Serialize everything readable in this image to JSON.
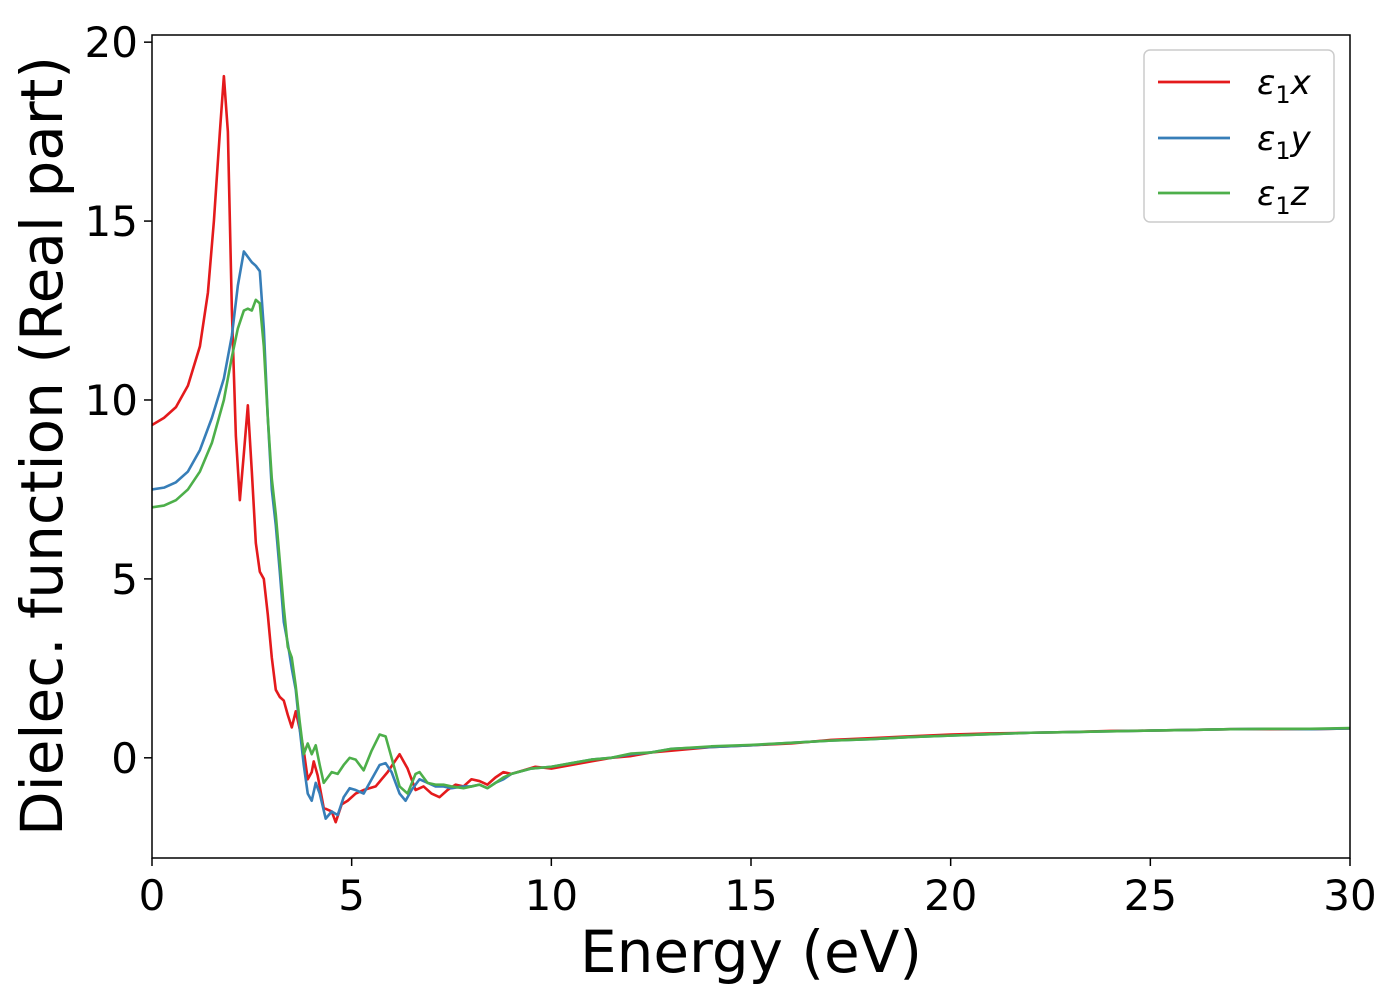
{
  "chart_data": {
    "type": "line",
    "title": "",
    "xlabel": "Energy (eV)",
    "ylabel": "Dielec. function (Real part)",
    "xlim": [
      0,
      30
    ],
    "ylim": [
      -2.8,
      20.2
    ],
    "xticks": [
      0,
      5,
      10,
      15,
      20,
      25,
      30
    ],
    "yticks": [
      0,
      5,
      10,
      15,
      20
    ],
    "grid": false,
    "legend_position": "top-right",
    "series": [
      {
        "name": "ε₁x",
        "color": "#e41a1c",
        "points": [
          [
            0,
            9.3
          ],
          [
            0.3,
            9.5
          ],
          [
            0.6,
            9.8
          ],
          [
            0.9,
            10.4
          ],
          [
            1.2,
            11.5
          ],
          [
            1.4,
            13.0
          ],
          [
            1.55,
            15.0
          ],
          [
            1.7,
            17.5
          ],
          [
            1.8,
            19.05
          ],
          [
            1.9,
            17.5
          ],
          [
            2.0,
            12.5
          ],
          [
            2.1,
            9.0
          ],
          [
            2.2,
            7.2
          ],
          [
            2.3,
            8.5
          ],
          [
            2.4,
            9.85
          ],
          [
            2.5,
            8.0
          ],
          [
            2.6,
            6.0
          ],
          [
            2.7,
            5.2
          ],
          [
            2.8,
            5.0
          ],
          [
            2.9,
            4.0
          ],
          [
            3.0,
            2.8
          ],
          [
            3.1,
            1.9
          ],
          [
            3.2,
            1.7
          ],
          [
            3.3,
            1.6
          ],
          [
            3.4,
            1.2
          ],
          [
            3.5,
            0.85
          ],
          [
            3.6,
            1.3
          ],
          [
            3.7,
            0.8
          ],
          [
            3.8,
            0.2
          ],
          [
            3.9,
            -0.6
          ],
          [
            4.0,
            -0.4
          ],
          [
            4.05,
            -0.1
          ],
          [
            4.15,
            -0.5
          ],
          [
            4.3,
            -1.4
          ],
          [
            4.5,
            -1.5
          ],
          [
            4.6,
            -1.8
          ],
          [
            4.75,
            -1.3
          ],
          [
            4.9,
            -1.2
          ],
          [
            5.1,
            -1.0
          ],
          [
            5.3,
            -0.9
          ],
          [
            5.6,
            -0.8
          ],
          [
            5.9,
            -0.4
          ],
          [
            6.2,
            0.1
          ],
          [
            6.4,
            -0.3
          ],
          [
            6.6,
            -0.9
          ],
          [
            6.8,
            -0.8
          ],
          [
            7.0,
            -1.0
          ],
          [
            7.2,
            -1.1
          ],
          [
            7.4,
            -0.9
          ],
          [
            7.6,
            -0.75
          ],
          [
            7.8,
            -0.8
          ],
          [
            8.0,
            -0.6
          ],
          [
            8.2,
            -0.65
          ],
          [
            8.4,
            -0.75
          ],
          [
            8.6,
            -0.55
          ],
          [
            8.8,
            -0.4
          ],
          [
            9.0,
            -0.45
          ],
          [
            9.3,
            -0.35
          ],
          [
            9.6,
            -0.25
          ],
          [
            10.0,
            -0.3
          ],
          [
            10.5,
            -0.2
          ],
          [
            11.0,
            -0.1
          ],
          [
            11.5,
            0.0
          ],
          [
            12.0,
            0.05
          ],
          [
            12.5,
            0.15
          ],
          [
            13,
            0.2
          ],
          [
            14,
            0.3
          ],
          [
            15,
            0.35
          ],
          [
            16,
            0.4
          ],
          [
            17,
            0.5
          ],
          [
            18,
            0.55
          ],
          [
            19,
            0.6
          ],
          [
            20,
            0.65
          ],
          [
            21,
            0.68
          ],
          [
            22,
            0.7
          ],
          [
            23,
            0.72
          ],
          [
            24,
            0.75
          ],
          [
            25,
            0.76
          ],
          [
            26,
            0.78
          ],
          [
            27,
            0.8
          ],
          [
            28,
            0.8
          ],
          [
            29,
            0.8
          ],
          [
            30,
            0.82
          ]
        ]
      },
      {
        "name": "ε₁y",
        "color": "#377eb8",
        "points": [
          [
            0,
            7.5
          ],
          [
            0.3,
            7.55
          ],
          [
            0.6,
            7.7
          ],
          [
            0.9,
            8.0
          ],
          [
            1.2,
            8.6
          ],
          [
            1.5,
            9.5
          ],
          [
            1.8,
            10.6
          ],
          [
            2.0,
            11.8
          ],
          [
            2.15,
            13.2
          ],
          [
            2.3,
            14.15
          ],
          [
            2.4,
            14.0
          ],
          [
            2.5,
            13.85
          ],
          [
            2.6,
            13.75
          ],
          [
            2.7,
            13.6
          ],
          [
            2.8,
            12.0
          ],
          [
            2.9,
            9.5
          ],
          [
            3.0,
            7.5
          ],
          [
            3.1,
            6.5
          ],
          [
            3.2,
            5.2
          ],
          [
            3.3,
            3.8
          ],
          [
            3.4,
            3.2
          ],
          [
            3.5,
            2.5
          ],
          [
            3.6,
            1.9
          ],
          [
            3.7,
            0.8
          ],
          [
            3.8,
            -0.2
          ],
          [
            3.9,
            -1.0
          ],
          [
            4.0,
            -1.2
          ],
          [
            4.1,
            -0.7
          ],
          [
            4.2,
            -1.0
          ],
          [
            4.35,
            -1.7
          ],
          [
            4.5,
            -1.5
          ],
          [
            4.65,
            -1.6
          ],
          [
            4.8,
            -1.1
          ],
          [
            4.95,
            -0.85
          ],
          [
            5.1,
            -0.9
          ],
          [
            5.3,
            -1.0
          ],
          [
            5.5,
            -0.6
          ],
          [
            5.7,
            -0.2
          ],
          [
            5.85,
            -0.15
          ],
          [
            6.0,
            -0.4
          ],
          [
            6.2,
            -1.0
          ],
          [
            6.35,
            -1.2
          ],
          [
            6.5,
            -0.9
          ],
          [
            6.7,
            -0.6
          ],
          [
            6.9,
            -0.7
          ],
          [
            7.1,
            -0.8
          ],
          [
            7.3,
            -0.8
          ],
          [
            7.5,
            -0.85
          ],
          [
            7.8,
            -0.8
          ],
          [
            8.0,
            -0.8
          ],
          [
            8.2,
            -0.75
          ],
          [
            8.4,
            -0.85
          ],
          [
            8.6,
            -0.7
          ],
          [
            8.8,
            -0.6
          ],
          [
            9.0,
            -0.45
          ],
          [
            9.5,
            -0.3
          ],
          [
            10.0,
            -0.25
          ],
          [
            10.5,
            -0.15
          ],
          [
            11.0,
            -0.05
          ],
          [
            11.5,
            0.0
          ],
          [
            12.0,
            0.1
          ],
          [
            12.5,
            0.15
          ],
          [
            13,
            0.25
          ],
          [
            14,
            0.3
          ],
          [
            15,
            0.35
          ],
          [
            16,
            0.42
          ],
          [
            17,
            0.48
          ],
          [
            18,
            0.52
          ],
          [
            19,
            0.58
          ],
          [
            20,
            0.62
          ],
          [
            21,
            0.66
          ],
          [
            22,
            0.7
          ],
          [
            23,
            0.72
          ],
          [
            24,
            0.74
          ],
          [
            25,
            0.76
          ],
          [
            26,
            0.78
          ],
          [
            27,
            0.8
          ],
          [
            28,
            0.81
          ],
          [
            29,
            0.8
          ],
          [
            30,
            0.82
          ]
        ]
      },
      {
        "name": "ε₁z",
        "color": "#4daf4a",
        "points": [
          [
            0,
            7.0
          ],
          [
            0.3,
            7.05
          ],
          [
            0.6,
            7.2
          ],
          [
            0.9,
            7.5
          ],
          [
            1.2,
            8.0
          ],
          [
            1.5,
            8.8
          ],
          [
            1.8,
            10.0
          ],
          [
            2.0,
            11.2
          ],
          [
            2.15,
            12.0
          ],
          [
            2.3,
            12.5
          ],
          [
            2.4,
            12.55
          ],
          [
            2.5,
            12.5
          ],
          [
            2.6,
            12.8
          ],
          [
            2.7,
            12.7
          ],
          [
            2.8,
            11.5
          ],
          [
            2.9,
            9.5
          ],
          [
            3.0,
            7.8
          ],
          [
            3.1,
            6.8
          ],
          [
            3.2,
            5.5
          ],
          [
            3.3,
            4.2
          ],
          [
            3.4,
            3.1
          ],
          [
            3.5,
            2.8
          ],
          [
            3.6,
            2.0
          ],
          [
            3.7,
            1.0
          ],
          [
            3.8,
            0.1
          ],
          [
            3.9,
            0.4
          ],
          [
            4.0,
            0.1
          ],
          [
            4.1,
            0.35
          ],
          [
            4.2,
            -0.2
          ],
          [
            4.3,
            -0.7
          ],
          [
            4.5,
            -0.4
          ],
          [
            4.65,
            -0.45
          ],
          [
            4.8,
            -0.2
          ],
          [
            4.95,
            0.0
          ],
          [
            5.1,
            -0.05
          ],
          [
            5.3,
            -0.35
          ],
          [
            5.5,
            0.2
          ],
          [
            5.7,
            0.65
          ],
          [
            5.85,
            0.6
          ],
          [
            6.0,
            0.0
          ],
          [
            6.2,
            -0.8
          ],
          [
            6.4,
            -1.0
          ],
          [
            6.6,
            -0.45
          ],
          [
            6.7,
            -0.4
          ],
          [
            6.9,
            -0.7
          ],
          [
            7.1,
            -0.75
          ],
          [
            7.3,
            -0.75
          ],
          [
            7.5,
            -0.8
          ],
          [
            7.8,
            -0.85
          ],
          [
            8.0,
            -0.8
          ],
          [
            8.2,
            -0.75
          ],
          [
            8.4,
            -0.85
          ],
          [
            8.6,
            -0.7
          ],
          [
            8.8,
            -0.55
          ],
          [
            9.0,
            -0.45
          ],
          [
            9.5,
            -0.3
          ],
          [
            10.0,
            -0.25
          ],
          [
            10.5,
            -0.15
          ],
          [
            11.0,
            -0.05
          ],
          [
            11.5,
            0.0
          ],
          [
            12.0,
            0.12
          ],
          [
            12.5,
            0.15
          ],
          [
            13,
            0.25
          ],
          [
            14,
            0.32
          ],
          [
            15,
            0.36
          ],
          [
            16,
            0.42
          ],
          [
            17,
            0.48
          ],
          [
            18,
            0.52
          ],
          [
            19,
            0.58
          ],
          [
            20,
            0.62
          ],
          [
            21,
            0.66
          ],
          [
            22,
            0.7
          ],
          [
            23,
            0.72
          ],
          [
            24,
            0.74
          ],
          [
            25,
            0.76
          ],
          [
            26,
            0.78
          ],
          [
            27,
            0.8
          ],
          [
            28,
            0.81
          ],
          [
            29,
            0.81
          ],
          [
            30,
            0.83
          ]
        ]
      }
    ]
  },
  "legend": {
    "items": [
      {
        "base": "ε",
        "sub": "1",
        "suffix": "x"
      },
      {
        "base": "ε",
        "sub": "1",
        "suffix": "y"
      },
      {
        "base": "ε",
        "sub": "1",
        "suffix": "z"
      }
    ]
  }
}
